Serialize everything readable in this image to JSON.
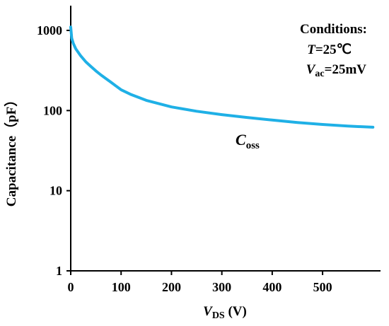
{
  "chart_data": {
    "type": "line",
    "x_axis": {
      "label_main": "V",
      "label_sub": "DS",
      "label_unit": " (V)",
      "range": [
        0,
        615
      ],
      "ticks": [
        0,
        100,
        200,
        300,
        400,
        500
      ],
      "tick_labels": [
        "0",
        "100",
        "200",
        "300",
        "400",
        "500"
      ]
    },
    "y_axis": {
      "label": "Capacitance（pF）",
      "scale": "log",
      "range": [
        1,
        1000
      ],
      "ticks": [
        1,
        10,
        100,
        1000
      ],
      "tick_labels": [
        "1",
        "10",
        "100",
        "1000"
      ]
    },
    "grid": false,
    "series": [
      {
        "name_main": "C",
        "name_sub": "oss",
        "color": "#1fb0e6",
        "x": [
          0,
          2,
          5,
          10,
          20,
          30,
          40,
          50,
          60,
          70,
          80,
          90,
          100,
          120,
          150,
          200,
          250,
          300,
          350,
          400,
          450,
          500,
          550,
          600
        ],
        "y": [
          1100,
          800,
          690,
          590,
          480,
          405,
          355,
          312,
          278,
          250,
          225,
          202,
          182,
          158,
          134,
          111,
          98,
          89,
          82,
          76,
          71,
          67,
          64,
          62
        ]
      }
    ],
    "annotations": {
      "title": "Conditions:",
      "temp_var": "T",
      "temp_value": "=25℃",
      "vac_var": "V",
      "vac_sub": "ac",
      "vac_value": "=25mV"
    }
  }
}
